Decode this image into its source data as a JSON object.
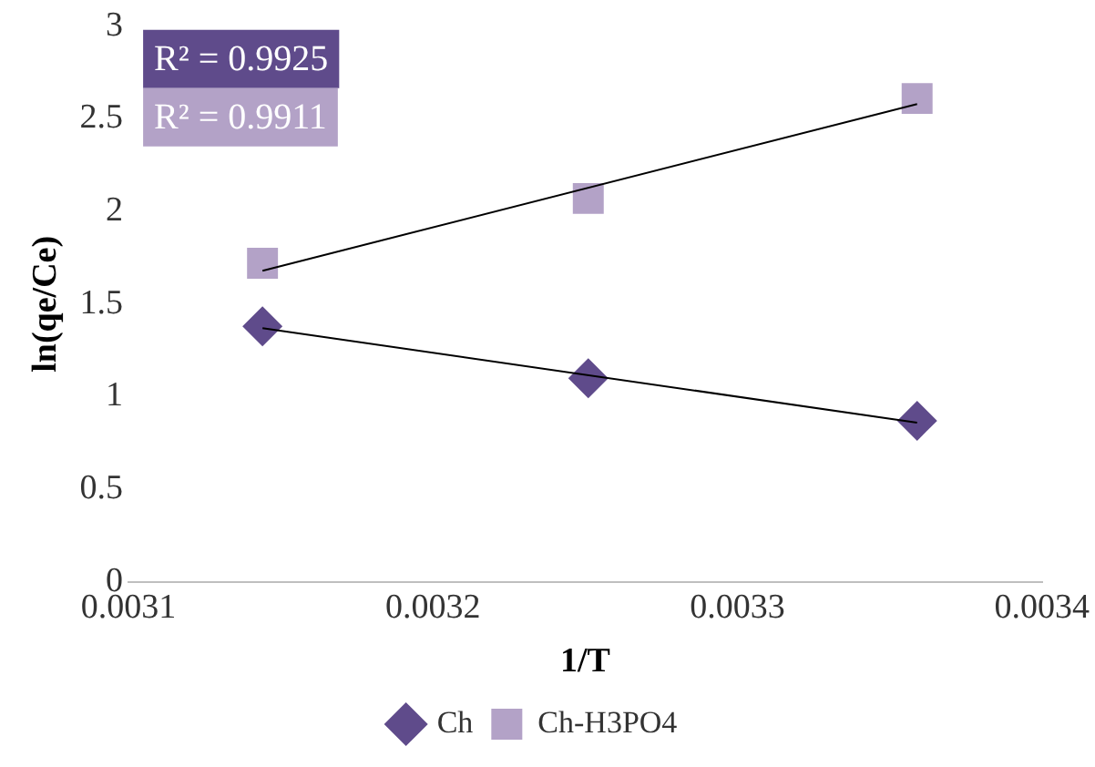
{
  "chart_data": {
    "type": "scatter",
    "xlabel": "1/T",
    "ylabel": "ln(qe/Ce)",
    "xlim": [
      0.0031,
      0.0034
    ],
    "xticks": [
      0.0031,
      0.0032,
      0.0033,
      0.0034
    ],
    "ylim": [
      0,
      3
    ],
    "yticks": [
      0,
      0.5,
      1,
      1.5,
      2,
      2.5,
      3
    ],
    "grid": false,
    "legend": "bottom",
    "annotations": [
      "R² = 0.9925",
      "R² = 0.9911"
    ],
    "series": [
      {
        "name": "Ch",
        "color": "#5f4b8b",
        "marker": "diamond",
        "x": [
          0.003144,
          0.003251,
          0.003359
        ],
        "values": [
          1.38,
          1.1,
          0.87
        ]
      },
      {
        "name": "Ch-H3PO4",
        "color": "#b3a2c7",
        "marker": "square",
        "x": [
          0.003144,
          0.003251,
          0.003359
        ],
        "values": [
          1.72,
          2.07,
          2.61
        ]
      },
      {
        "type": "line",
        "color": "#000000",
        "marker": "none",
        "x": [
          0.003144,
          0.003359
        ],
        "values": [
          1.37,
          0.86
        ]
      },
      {
        "type": "line",
        "color": "#000000",
        "marker": "none",
        "x": [
          0.003144,
          0.003359
        ],
        "values": [
          1.68,
          2.58
        ]
      }
    ]
  }
}
